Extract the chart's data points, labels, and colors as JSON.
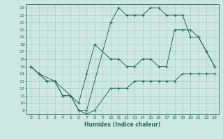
{
  "xlabel": "Humidex (Indice chaleur)",
  "bg_color": "#cce8e0",
  "grid_color": "#aaccc4",
  "line_color": "#2a6b5a",
  "xlim": [
    -0.5,
    23.5
  ],
  "ylim": [
    8.5,
    23.5
  ],
  "xticks": [
    0,
    1,
    2,
    3,
    4,
    5,
    6,
    7,
    8,
    9,
    10,
    11,
    12,
    13,
    14,
    15,
    16,
    17,
    18,
    19,
    20,
    21,
    22,
    23
  ],
  "yticks": [
    9,
    10,
    11,
    12,
    13,
    14,
    15,
    16,
    17,
    18,
    19,
    20,
    21,
    22,
    23
  ],
  "line1_x": [
    0,
    1,
    2,
    3,
    4,
    5,
    6,
    7,
    10,
    11,
    12,
    13,
    14,
    15,
    16,
    17,
    18,
    19,
    20,
    21,
    22,
    23
  ],
  "line1_y": [
    15,
    14,
    13,
    13,
    11,
    11,
    9,
    9,
    21,
    23,
    22,
    22,
    22,
    23,
    23,
    22,
    22,
    22,
    19,
    19,
    17,
    15
  ],
  "line2_x": [
    0,
    1,
    3,
    5,
    6,
    7,
    8,
    10,
    11,
    12,
    13,
    14,
    15,
    16,
    17,
    18,
    19,
    20,
    21,
    22,
    23
  ],
  "line2_y": [
    15,
    14,
    13,
    11,
    10,
    14,
    18,
    16,
    16,
    15,
    15,
    16,
    16,
    15,
    15,
    20,
    20,
    20,
    19,
    17,
    15
  ],
  "line3_x": [
    0,
    1,
    2,
    3,
    4,
    5,
    6,
    7,
    8,
    10,
    11,
    12,
    13,
    14,
    15,
    16,
    17,
    18,
    19,
    20,
    21,
    22,
    23
  ],
  "line3_y": [
    15,
    14,
    13,
    13,
    11,
    11,
    9,
    8.5,
    9,
    12,
    12,
    12,
    13,
    13,
    13,
    13,
    13,
    13,
    14,
    14,
    14,
    14,
    14
  ]
}
